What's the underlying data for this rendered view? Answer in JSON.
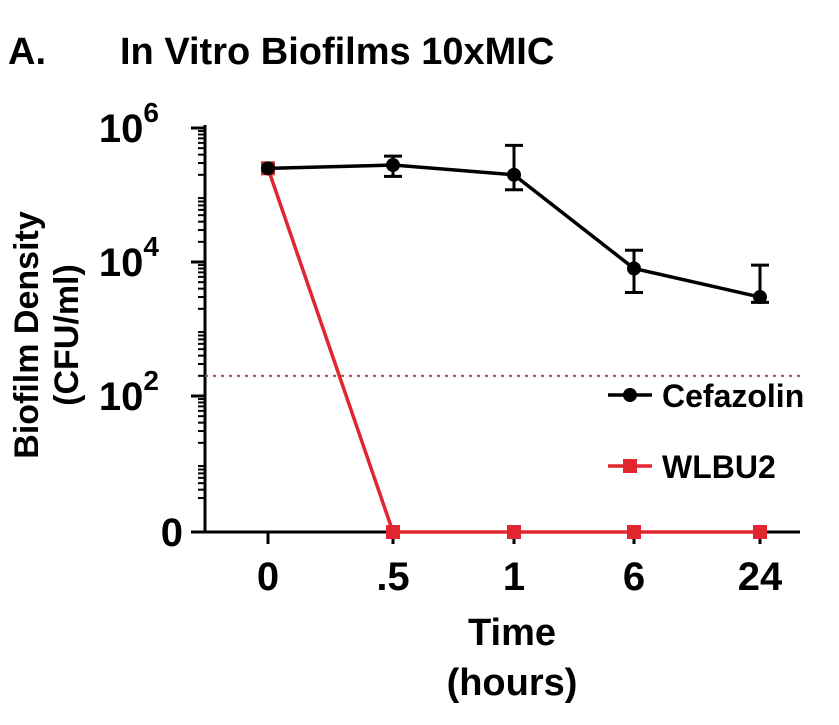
{
  "figure": {
    "panel_label": "A.",
    "title": "In Vitro Biofilms 10xMIC"
  },
  "chart_data": {
    "type": "line",
    "title": "In Vitro Biofilms 10xMIC",
    "xlabel": "Time",
    "xlabel_unit": "(hours)",
    "ylabel": "Biofilm Density",
    "ylabel_unit": "(CFU/ml)",
    "y_scale": "log",
    "categories": [
      "0",
      ".5",
      "1",
      "6",
      "24"
    ],
    "y_ticks": [
      {
        "base": "0",
        "exp": ""
      },
      {
        "base": "10",
        "exp": "2"
      },
      {
        "base": "10",
        "exp": "4"
      },
      {
        "base": "10",
        "exp": "6"
      }
    ],
    "detection_limit": 200,
    "series": [
      {
        "name": "Cefazolin",
        "color": "#000000",
        "marker": "circle",
        "values": [
          250000,
          280000,
          200000,
          8000,
          3000
        ],
        "error_bar_top": [
          null,
          380000,
          550000,
          15000,
          9000
        ],
        "error_bar_bottom": [
          null,
          190000,
          120000,
          3500,
          2500
        ]
      },
      {
        "name": "WLBU2",
        "color": "#e0262f",
        "marker": "square",
        "values": [
          250000,
          0,
          0,
          0,
          0
        ]
      }
    ],
    "legend_position": "right-middle",
    "grid": false
  }
}
